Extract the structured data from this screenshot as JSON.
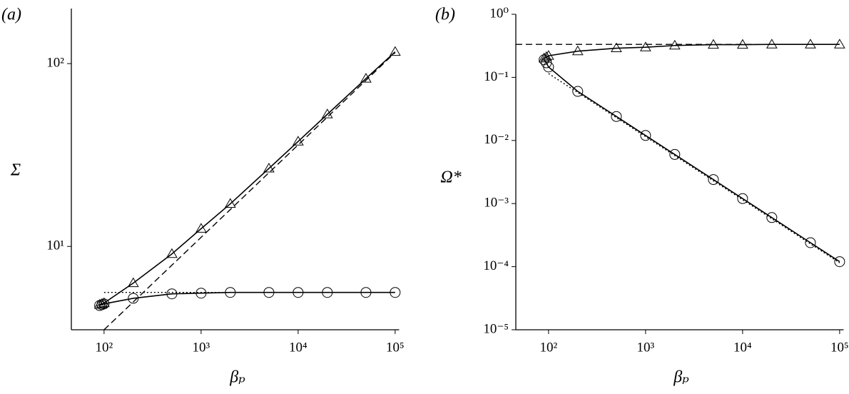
{
  "chart_data": [
    {
      "type": "line",
      "title": "(a)",
      "ylabel": "Σ",
      "xlabel": "βₚ",
      "xscale": "log",
      "yscale": "log",
      "xlim": [
        46,
        110000
      ],
      "ylim": [
        3.5,
        200
      ],
      "xticks": [
        {
          "value": 100,
          "label": "10²"
        },
        {
          "value": 1000,
          "label": "10³"
        },
        {
          "value": 10000,
          "label": "10⁴"
        },
        {
          "value": 100000,
          "label": "10⁵"
        }
      ],
      "yticks": [
        {
          "value": 10,
          "label": "10¹"
        },
        {
          "value": 100,
          "label": "10²"
        }
      ],
      "series": [
        {
          "color": "#000000",
          "marker": "triangle",
          "linestyle": "solid",
          "x": [
            90,
            95,
            100,
            200,
            500,
            1000,
            2000,
            5000,
            10000,
            20000,
            50000,
            100000
          ],
          "values": [
            4.8,
            4.85,
            4.9,
            6.3,
            9.1,
            12.5,
            17.1,
            26.7,
            37.5,
            52.8,
            82.8,
            116
          ]
        },
        {
          "color": "#000000",
          "marker": "circle",
          "linestyle": "solid",
          "x": [
            90,
            95,
            100,
            200,
            500,
            1000,
            2000,
            5000,
            10000,
            20000,
            50000,
            100000
          ],
          "values": [
            4.75,
            4.8,
            4.85,
            5.2,
            5.5,
            5.55,
            5.6,
            5.6,
            5.6,
            5.6,
            5.6,
            5.6
          ]
        },
        {
          "color": "#000000",
          "linestyle": "dashed",
          "x": [
            100,
            100000
          ],
          "values": [
            3.5,
            115
          ]
        },
        {
          "color": "#000000",
          "linestyle": "dotted",
          "x": [
            100,
            100000
          ],
          "values": [
            5.6,
            5.6
          ]
        }
      ]
    },
    {
      "type": "line",
      "title": "(b)",
      "ylabel": "Ω*",
      "xlabel": "βₚ",
      "xscale": "log",
      "yscale": "log",
      "xlim": [
        46,
        110000
      ],
      "ylim": [
        1e-05,
        1
      ],
      "xticks": [
        {
          "value": 100,
          "label": "10²"
        },
        {
          "value": 1000,
          "label": "10³"
        },
        {
          "value": 10000,
          "label": "10⁴"
        },
        {
          "value": 100000,
          "label": "10⁵"
        }
      ],
      "yticks": [
        {
          "value": 1e-05,
          "label": "10⁻⁵"
        },
        {
          "value": 0.0001,
          "label": "10⁻⁴"
        },
        {
          "value": 0.001,
          "label": "10⁻³"
        },
        {
          "value": 0.01,
          "label": "10⁻²"
        },
        {
          "value": 0.1,
          "label": "10⁻¹"
        },
        {
          "value": 1,
          "label": "10⁰"
        }
      ],
      "series": [
        {
          "color": "#000000",
          "marker": "triangle",
          "linestyle": "solid",
          "x": [
            90,
            95,
            100,
            200,
            500,
            1000,
            2000,
            5000,
            10000,
            20000,
            50000,
            100000
          ],
          "values": [
            0.2,
            0.21,
            0.22,
            0.26,
            0.29,
            0.3,
            0.32,
            0.33,
            0.33,
            0.333,
            0.333,
            0.333
          ]
        },
        {
          "color": "#000000",
          "marker": "circle",
          "linestyle": "solid",
          "x": [
            90,
            95,
            100,
            200,
            500,
            1000,
            2000,
            5000,
            10000,
            20000,
            50000,
            100000
          ],
          "values": [
            0.19,
            0.17,
            0.146,
            0.06,
            0.024,
            0.012,
            0.006,
            0.0024,
            0.0012,
            0.0006,
            0.00024,
            0.00012
          ]
        },
        {
          "color": "#000000",
          "linestyle": "dashed",
          "x": [
            46,
            100000
          ],
          "values": [
            0.333,
            0.333
          ]
        },
        {
          "color": "#000000",
          "linestyle": "dotted",
          "x": [
            100,
            100000
          ],
          "values": [
            0.115,
            0.000115
          ]
        }
      ]
    }
  ]
}
